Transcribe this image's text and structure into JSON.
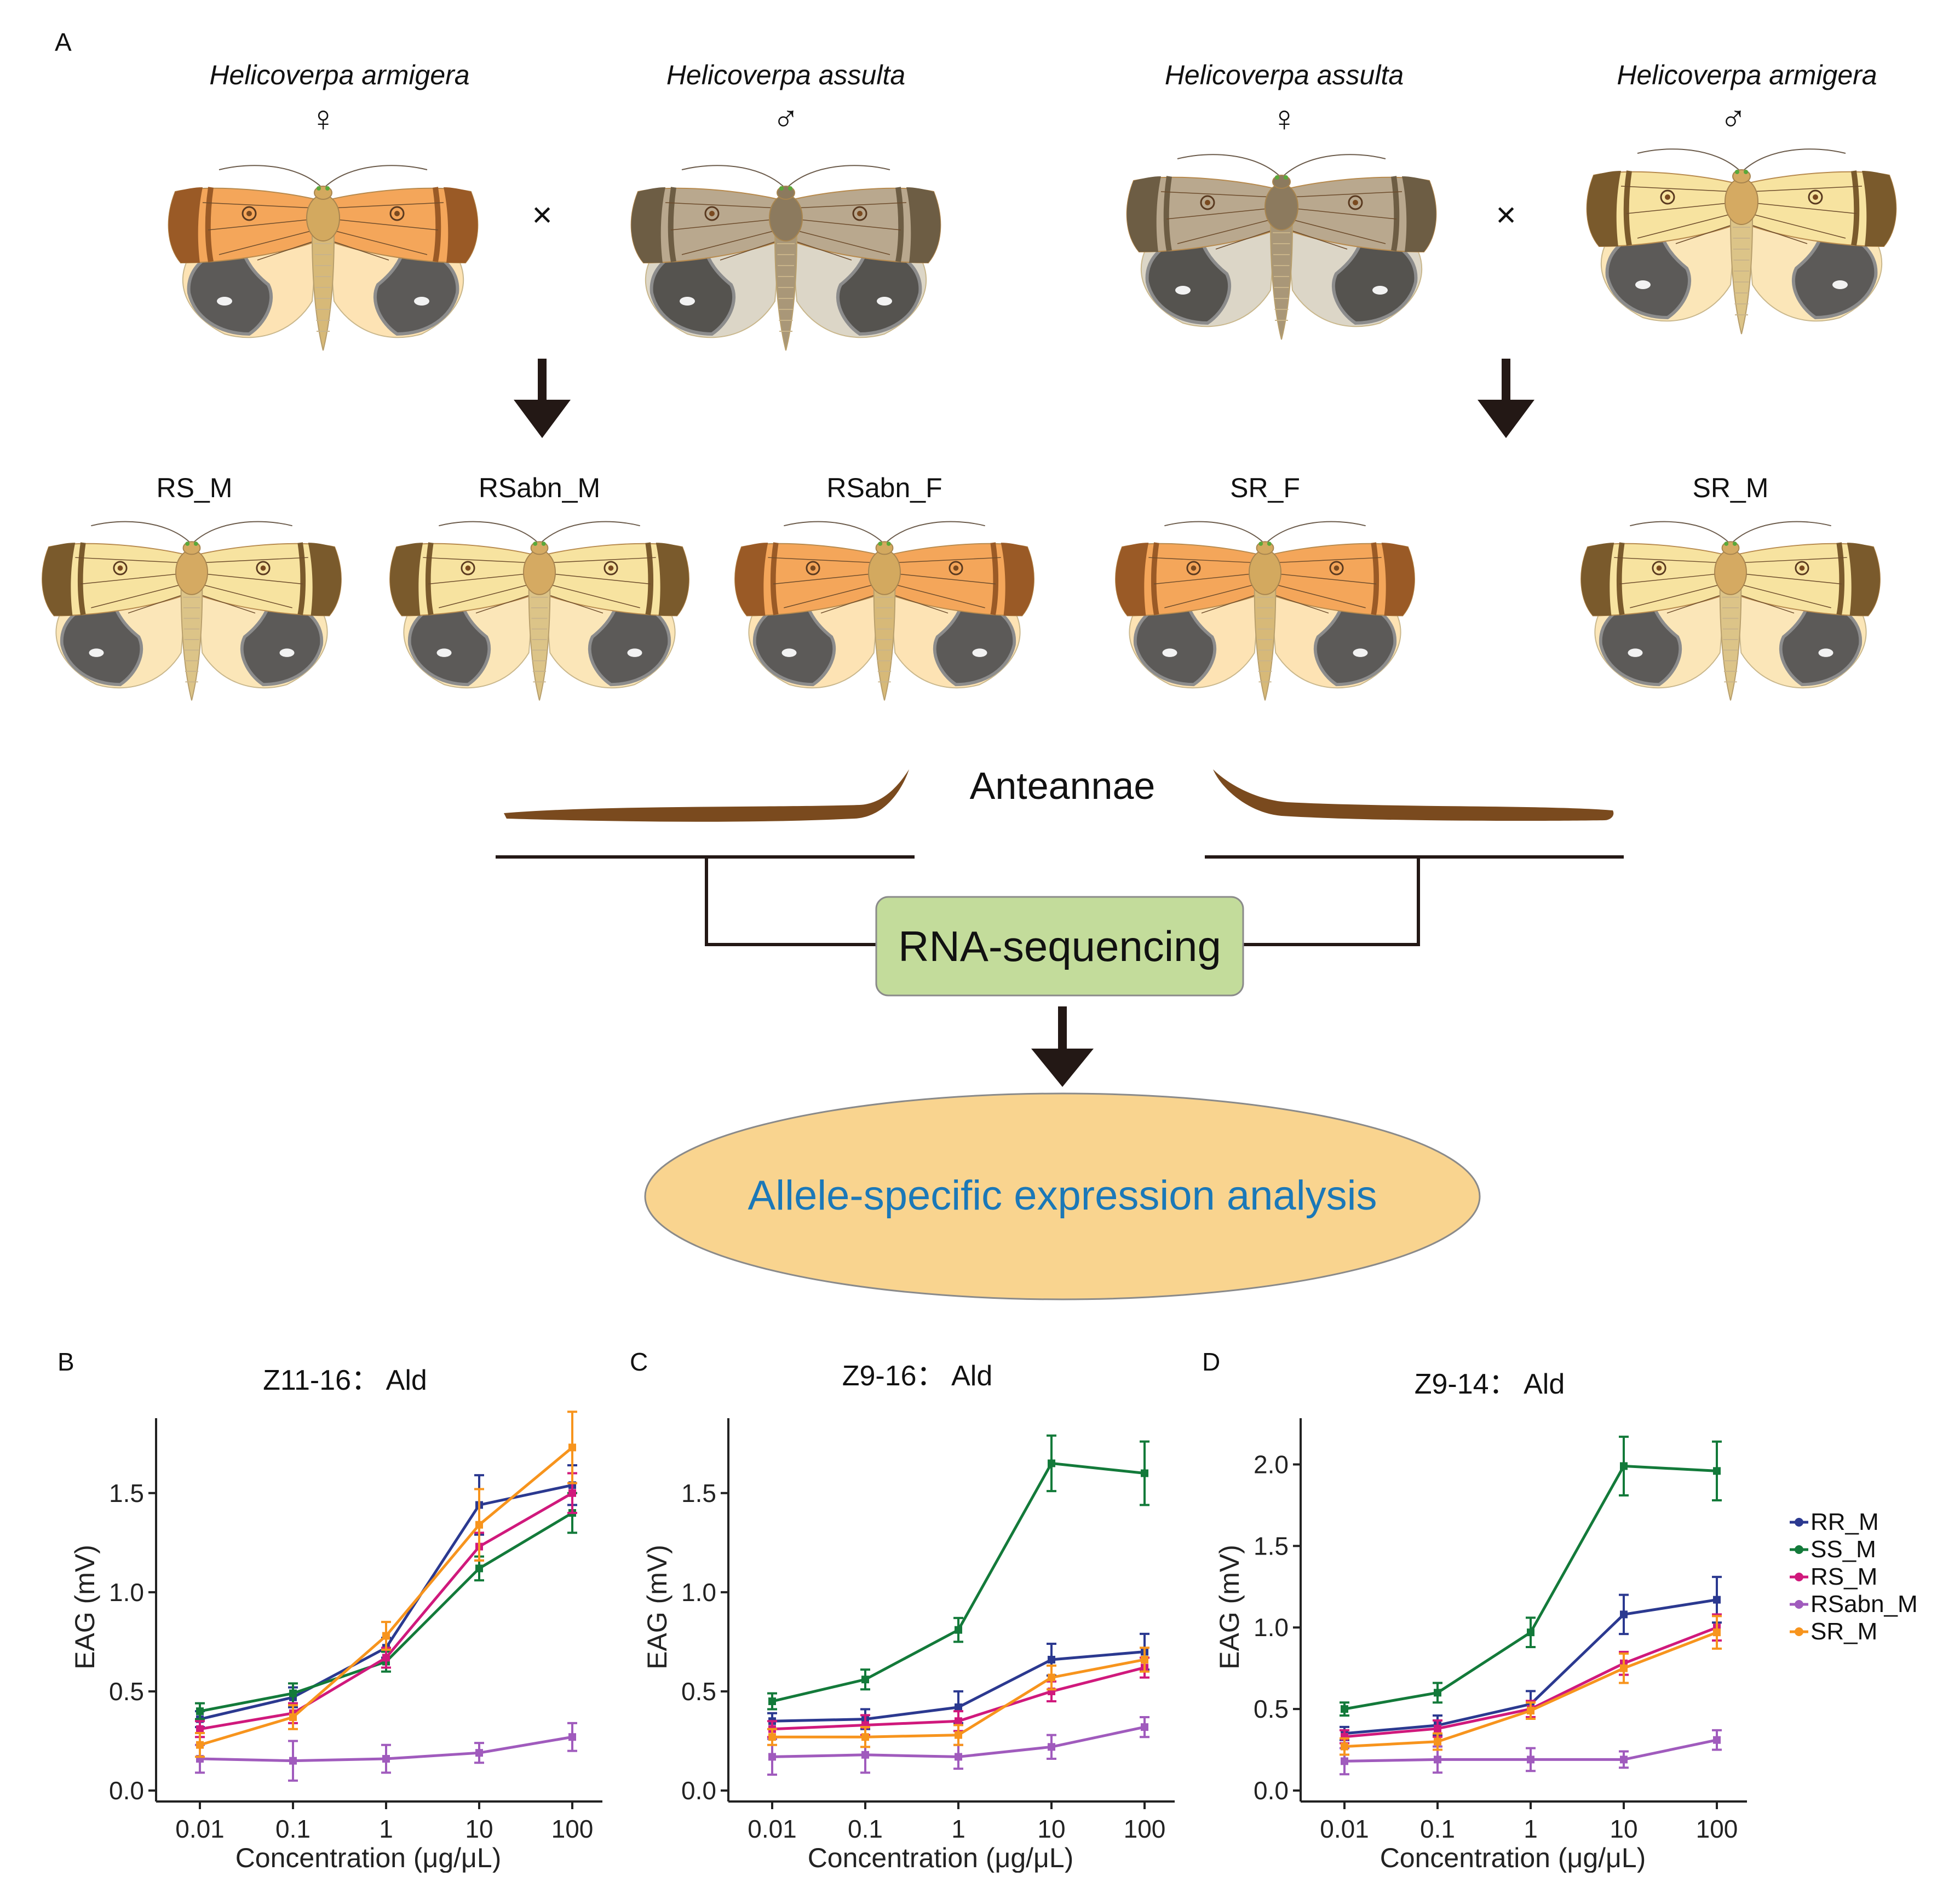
{
  "panel_a": {
    "letter": "A",
    "parents": [
      {
        "species": "Helicoverpa armigera",
        "sex": "♀",
        "palette": "orange"
      },
      {
        "species": "Helicoverpa assulta",
        "sex": "♂",
        "palette": "tan"
      },
      {
        "species": "Helicoverpa assulta",
        "sex": "♀",
        "palette": "tan"
      },
      {
        "species": "Helicoverpa armigera",
        "sex": "♂",
        "palette": "yellow"
      }
    ],
    "cross_symbol": "×",
    "offspring": [
      {
        "label": "RS_M",
        "palette": "yellow"
      },
      {
        "label": "RSabn_M",
        "palette": "yellow"
      },
      {
        "label": "RSabn_F",
        "palette": "orange"
      },
      {
        "label": "SR_F",
        "palette": "orange"
      },
      {
        "label": "SR_M",
        "palette": "yellow"
      }
    ],
    "tissue_label": "Anteannae",
    "method_label": "RNA-sequencing",
    "analysis_label": "Allele-specific expression analysis",
    "colors": {
      "method_box": "#c3dc9b",
      "analysis_ellipse": "#f9d48f",
      "analysis_text": "#1b78b8",
      "antenna": "#7a4a1e"
    }
  },
  "chart_data": [
    {
      "letter": "B",
      "type": "line",
      "title": "Z11-16： Ald",
      "xlabel": "Concentration (μg/μL)",
      "ylabel": "EAG (mV)",
      "x": [
        "0.01",
        "0.1",
        "1",
        "10",
        "100"
      ],
      "xscale": "log",
      "ylim": [
        0,
        1.85
      ],
      "yticks": [
        "0.0",
        "0.5",
        "1.0",
        "1.5"
      ],
      "ytick_values": [
        0,
        0.5,
        1.0,
        1.5
      ],
      "series": [
        {
          "name": "RR_M",
          "color": "#2b3990",
          "values": [
            0.36,
            0.47,
            0.72,
            1.44,
            1.54
          ],
          "err": [
            0.04,
            0.05,
            0.05,
            0.15,
            0.1
          ]
        },
        {
          "name": "SS_M",
          "color": "#137a3a",
          "values": [
            0.4,
            0.49,
            0.65,
            1.12,
            1.4
          ],
          "err": [
            0.04,
            0.05,
            0.05,
            0.06,
            0.1
          ]
        },
        {
          "name": "RS_M",
          "color": "#d0197c",
          "values": [
            0.31,
            0.39,
            0.67,
            1.23,
            1.5
          ],
          "err": [
            0.04,
            0.05,
            0.05,
            0.07,
            0.1
          ]
        },
        {
          "name": "RSabn_M",
          "color": "#a05bbd",
          "values": [
            0.16,
            0.15,
            0.16,
            0.19,
            0.27
          ],
          "err": [
            0.07,
            0.1,
            0.07,
            0.05,
            0.07
          ]
        },
        {
          "name": "SR_M",
          "color": "#f7941d",
          "values": [
            0.23,
            0.37,
            0.78,
            1.34,
            1.73
          ],
          "err": [
            0.06,
            0.06,
            0.07,
            0.18,
            0.18
          ]
        }
      ]
    },
    {
      "letter": "C",
      "type": "line",
      "title": "Z9-16： Ald",
      "xlabel": "Concentration (μg/μL)",
      "ylabel": "EAG (mV)",
      "x": [
        "0.01",
        "0.1",
        "1",
        "10",
        "100"
      ],
      "xscale": "log",
      "ylim": [
        0,
        1.85
      ],
      "yticks": [
        "0.0",
        "0.5",
        "1.0",
        "1.5"
      ],
      "ytick_values": [
        0,
        0.5,
        1.0,
        1.5
      ],
      "series": [
        {
          "name": "RR_M",
          "color": "#2b3990",
          "values": [
            0.35,
            0.36,
            0.42,
            0.66,
            0.7
          ],
          "err": [
            0.04,
            0.05,
            0.08,
            0.08,
            0.09
          ]
        },
        {
          "name": "SS_M",
          "color": "#137a3a",
          "values": [
            0.45,
            0.56,
            0.81,
            1.65,
            1.6
          ],
          "err": [
            0.04,
            0.05,
            0.06,
            0.14,
            0.16
          ]
        },
        {
          "name": "RS_M",
          "color": "#d0197c",
          "values": [
            0.31,
            0.33,
            0.35,
            0.5,
            0.62
          ],
          "err": [
            0.04,
            0.05,
            0.05,
            0.05,
            0.05
          ]
        },
        {
          "name": "RSabn_M",
          "color": "#a05bbd",
          "values": [
            0.17,
            0.18,
            0.17,
            0.22,
            0.32
          ],
          "err": [
            0.09,
            0.09,
            0.06,
            0.06,
            0.05
          ]
        },
        {
          "name": "SR_M",
          "color": "#f7941d",
          "values": [
            0.27,
            0.27,
            0.28,
            0.57,
            0.66
          ],
          "err": [
            0.04,
            0.05,
            0.05,
            0.06,
            0.06
          ]
        }
      ]
    },
    {
      "letter": "D",
      "type": "line",
      "title": "Z9-14： Ald",
      "xlabel": "Concentration (μg/μL)",
      "ylabel": "EAG (mV)",
      "x": [
        "0.01",
        "0.1",
        "1",
        "10",
        "100"
      ],
      "xscale": "log",
      "ylim": [
        0,
        2.25
      ],
      "yticks": [
        "0.0",
        "0.5",
        "1.0",
        "1.5",
        "2.0"
      ],
      "ytick_values": [
        0,
        0.5,
        1.0,
        1.5,
        2.0
      ],
      "series": [
        {
          "name": "RR_M",
          "color": "#2b3990",
          "values": [
            0.35,
            0.4,
            0.53,
            1.08,
            1.17
          ],
          "err": [
            0.04,
            0.06,
            0.08,
            0.12,
            0.14
          ]
        },
        {
          "name": "SS_M",
          "color": "#137a3a",
          "values": [
            0.5,
            0.6,
            0.97,
            1.99,
            1.96
          ],
          "err": [
            0.04,
            0.06,
            0.09,
            0.18,
            0.18
          ]
        },
        {
          "name": "RS_M",
          "color": "#d0197c",
          "values": [
            0.33,
            0.38,
            0.5,
            0.78,
            1.0
          ],
          "err": [
            0.04,
            0.05,
            0.05,
            0.07,
            0.08
          ]
        },
        {
          "name": "RSabn_M",
          "color": "#a05bbd",
          "values": [
            0.18,
            0.19,
            0.19,
            0.19,
            0.31
          ],
          "err": [
            0.08,
            0.08,
            0.07,
            0.05,
            0.06
          ]
        },
        {
          "name": "SR_M",
          "color": "#f7941d",
          "values": [
            0.27,
            0.3,
            0.49,
            0.75,
            0.97
          ],
          "err": [
            0.05,
            0.05,
            0.05,
            0.09,
            0.1
          ]
        }
      ]
    }
  ],
  "legend": {
    "placement": "right",
    "entries": [
      "RR_M",
      "SS_M",
      "RS_M",
      "RSabn_M",
      "SR_M"
    ],
    "colors": [
      "#2b3990",
      "#137a3a",
      "#d0197c",
      "#a05bbd",
      "#f7941d"
    ]
  }
}
